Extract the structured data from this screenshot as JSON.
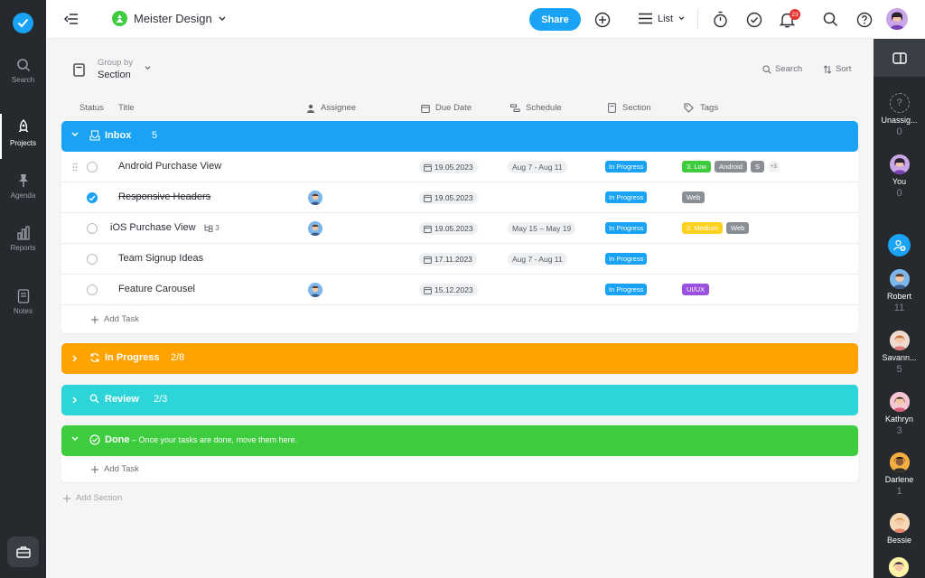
{
  "nav": {
    "items": [
      {
        "label": "Search",
        "icon": "search-icon"
      },
      {
        "label": "Projects",
        "icon": "rocket-icon"
      },
      {
        "label": "Agenda",
        "icon": "pin-icon"
      },
      {
        "label": "Reports",
        "icon": "bar-chart-icon"
      },
      {
        "label": "Notes",
        "icon": "note-icon"
      }
    ]
  },
  "header": {
    "project_name": "Meister Design",
    "share_label": "Share",
    "view_label": "List",
    "notification_count": "23"
  },
  "toolbar": {
    "group_by_label": "Group by",
    "group_by_value": "Section",
    "search_label": "Search",
    "sort_label": "Sort"
  },
  "columns": {
    "status": "Status",
    "title": "Title",
    "assignee": "Assignee",
    "due_date": "Due Date",
    "schedule": "Schedule",
    "section": "Section",
    "tags": "Tags"
  },
  "sections": {
    "inbox": {
      "title": "Inbox",
      "count": "5",
      "color": "#1aa3f5",
      "add_task": "Add Task",
      "tasks": [
        {
          "title": "Android Purchase View",
          "due": "19.05.2023",
          "schedule": "Aug 7 - Aug 11",
          "section": "In Progress",
          "tags": [
            "3. Low",
            "Android",
            "S"
          ],
          "more_tags": "+3",
          "done": false
        },
        {
          "title": "Responsive Headers",
          "due": "19.05.2023",
          "schedule": "",
          "section": "In Progress",
          "tags": [
            "Web"
          ],
          "done": true
        },
        {
          "title": "iOS Purchase View",
          "subtasks": "3",
          "due": "19.05.2023",
          "schedule": "May 15 – May 19",
          "section": "In Progress",
          "tags": [
            "2. Medium",
            "Web"
          ],
          "done": false
        },
        {
          "title": "Team Signup Ideas",
          "due": "17.11.2023",
          "schedule": "Aug 7 - Aug 11",
          "section": "In Progress",
          "tags": [],
          "done": false
        },
        {
          "title": "Feature Carousel",
          "due": "15.12.2023",
          "schedule": "",
          "section": "In Progress",
          "tags": [
            "UI/UX"
          ],
          "done": false
        }
      ]
    },
    "in_progress": {
      "title": "In Progress",
      "count": "2/8",
      "color": "#fea300"
    },
    "review": {
      "title": "Review",
      "count": "2/3",
      "color": "#2dd4d8"
    },
    "done": {
      "title": "Done",
      "description": "– Once your tasks are done, move them here.",
      "color": "#3dcc3d",
      "add_task": "Add Task"
    }
  },
  "add_section": "Add Section",
  "tag_colors": {
    "low": "#3dcc3d",
    "gray": "#8a8f96",
    "medium": "#ffd21f",
    "uiux": "#9b51e0"
  },
  "people": [
    {
      "name": "Unassig...",
      "count": "0"
    },
    {
      "name": "You",
      "count": "0"
    },
    {
      "name": "Robert",
      "count": "11"
    },
    {
      "name": "Savann...",
      "count": "5"
    },
    {
      "name": "Kathryn",
      "count": "3"
    },
    {
      "name": "Darlene",
      "count": "1"
    },
    {
      "name": "Bessie",
      "count": ""
    }
  ]
}
